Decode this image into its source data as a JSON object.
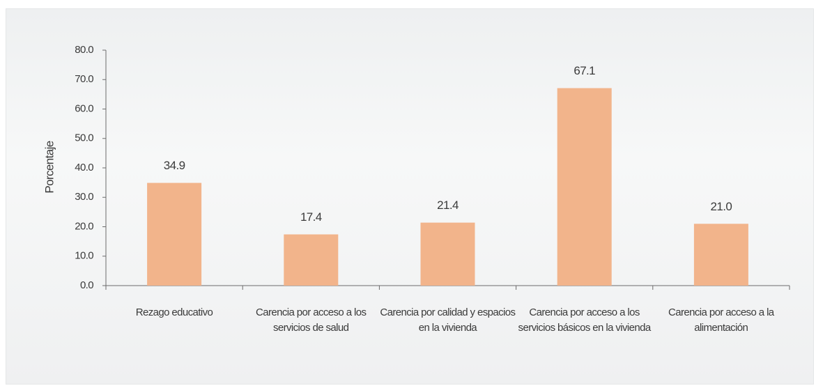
{
  "chart_data": {
    "type": "bar",
    "y_label": "Porcentaje",
    "categories": [
      "Rezago educativo",
      "Carencia por acceso a los servicios de salud",
      "Carencia por calidad y espacios en la vivienda",
      "Carencia por acceso a los servicios básicos en la vivienda",
      "Carencia por acceso a la alimentación"
    ],
    "values": [
      34.9,
      17.4,
      21.4,
      67.1,
      21.0
    ],
    "value_labels": [
      "34.9",
      "17.4",
      "21.4",
      "67.1",
      "21.0"
    ],
    "color": "#f2b48b",
    "ylim": [
      0,
      80
    ],
    "yticks": [
      {
        "value": 0,
        "label": "0.0"
      },
      {
        "value": 10,
        "label": "10.0"
      },
      {
        "value": 20,
        "label": "20.0"
      },
      {
        "value": 30,
        "label": "30.0"
      },
      {
        "value": 40,
        "label": "40.0"
      },
      {
        "value": 50,
        "label": "50.0"
      },
      {
        "value": 60,
        "label": "60.0"
      },
      {
        "value": 70,
        "label": "70.0"
      },
      {
        "value": 80,
        "label": "80.0"
      }
    ],
    "grid": false
  }
}
